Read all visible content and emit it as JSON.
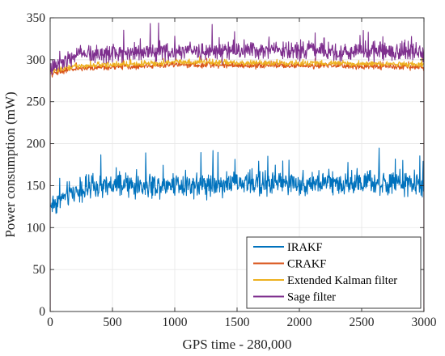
{
  "chart_data": {
    "type": "line",
    "title": "",
    "xlabel": "GPS time - 280,000",
    "ylabel": "Power consumption (mW)",
    "xlim": [
      0,
      3000
    ],
    "ylim": [
      0,
      350
    ],
    "xticks": [
      0,
      500,
      1000,
      1500,
      2000,
      2500,
      3000
    ],
    "yticks": [
      0,
      50,
      100,
      150,
      200,
      250,
      300,
      350
    ],
    "grid": true,
    "box": true,
    "legend_position": "bottom-right",
    "series": [
      {
        "name": "IRAKF",
        "color": "#0072BD",
        "x": [
          0,
          50,
          100,
          150,
          200,
          300,
          400,
          500,
          600,
          700,
          800,
          900,
          1000,
          1100,
          1200,
          1300,
          1400,
          1500,
          1600,
          1700,
          1800,
          1900,
          2000,
          2100,
          2200,
          2300,
          2400,
          2500,
          2600,
          2700,
          2800,
          2900,
          3000
        ],
        "y": [
          127,
          130,
          135,
          140,
          143,
          146,
          148,
          149,
          150,
          150,
          150,
          151,
          153,
          151,
          152,
          152,
          153,
          153,
          153,
          153,
          153,
          153,
          153,
          153,
          153,
          153,
          153,
          153,
          153,
          152,
          152,
          152,
          151
        ],
        "noise": 13
      },
      {
        "name": "CRAKF",
        "color": "#D95319",
        "x": [
          0,
          50,
          100,
          150,
          200,
          300,
          400,
          500,
          600,
          700,
          800,
          900,
          1000,
          1100,
          1200,
          1300,
          1400,
          1500,
          1600,
          1700,
          1800,
          1900,
          2000,
          2100,
          2200,
          2300,
          2400,
          2500,
          2600,
          2700,
          2800,
          2900,
          3000
        ],
        "y": [
          283,
          285,
          287,
          288,
          289,
          290,
          291,
          291,
          292,
          292,
          293,
          293,
          295,
          294,
          294,
          294,
          294,
          293,
          293,
          293,
          293,
          293,
          293,
          293,
          293,
          293,
          292,
          292,
          292,
          292,
          292,
          291,
          291
        ],
        "noise": 3
      },
      {
        "name": "Extended Kalman filter",
        "color": "#EDB120",
        "x": [
          0,
          50,
          100,
          150,
          200,
          300,
          400,
          500,
          600,
          700,
          800,
          900,
          1000,
          1100,
          1200,
          1300,
          1400,
          1500,
          1600,
          1700,
          1800,
          1900,
          2000,
          2100,
          2200,
          2300,
          2400,
          2500,
          2600,
          2700,
          2800,
          2900,
          3000
        ],
        "y": [
          286,
          288,
          290,
          291,
          292,
          293,
          294,
          294,
          295,
          295,
          296,
          296,
          298,
          297,
          297,
          297,
          297,
          296,
          296,
          296,
          296,
          296,
          296,
          296,
          296,
          296,
          295,
          295,
          295,
          295,
          295,
          294,
          294
        ],
        "noise": 3
      },
      {
        "name": "Sage filter",
        "color": "#7E2F8E",
        "x": [
          0,
          50,
          100,
          150,
          200,
          300,
          400,
          500,
          600,
          700,
          800,
          900,
          1000,
          1100,
          1200,
          1300,
          1400,
          1500,
          1600,
          1700,
          1800,
          1900,
          2000,
          2100,
          2200,
          2300,
          2400,
          2500,
          2600,
          2700,
          2800,
          2900,
          3000
        ],
        "y": [
          290,
          295,
          300,
          304,
          306,
          307,
          308,
          308,
          309,
          309,
          309,
          309,
          310,
          310,
          310,
          310,
          310,
          310,
          310,
          310,
          310,
          310,
          310,
          310,
          310,
          310,
          310,
          310,
          310,
          310,
          309,
          309,
          309
        ],
        "noise": 10
      }
    ]
  }
}
